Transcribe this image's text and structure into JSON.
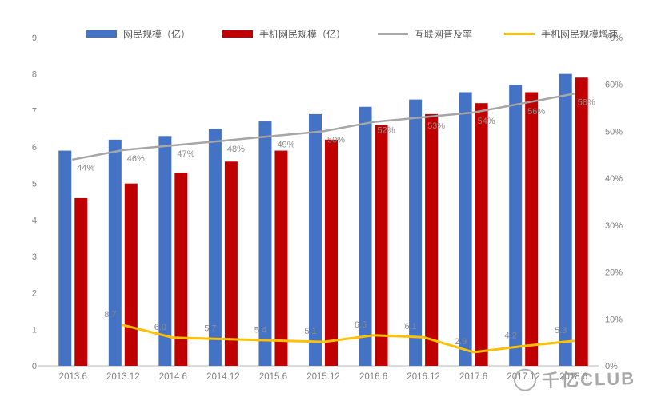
{
  "watermark": {
    "text": "千亿CLUB",
    "icon": "scribble-circle-icon"
  },
  "colors": {
    "netizen_bar": "#4472C4",
    "mobile_bar": "#C00000",
    "penetration_line": "#A6A6A6",
    "growth_line": "#FFC000",
    "axis_text": "#7f7f7f",
    "label_text": "#8c8c8c",
    "baseline": "#d0d0d0",
    "legend_text": "#595959"
  },
  "chart_data": {
    "type": "bar",
    "subtype": "combo-bar-line",
    "title": "",
    "xlabel": "",
    "ylabel": "",
    "grid": false,
    "legend_position": "top",
    "categories": [
      "2013.6",
      "2013.12",
      "2014.6",
      "2014.12",
      "2015.6",
      "2015.12",
      "2016.6",
      "2016.12",
      "2017.6",
      "2017.12",
      "2018.6"
    ],
    "left_axis": {
      "min": 0,
      "max": 9,
      "ticks": [
        "0",
        "1",
        "2",
        "3",
        "4",
        "5",
        "6",
        "7",
        "8",
        "9"
      ]
    },
    "right_axis": {
      "min": 0,
      "max": 70,
      "ticks": [
        "0%",
        "10%",
        "20%",
        "30%",
        "40%",
        "50%",
        "60%",
        "70%"
      ]
    },
    "series": [
      {
        "name": "网民规模（亿）",
        "kind": "bar",
        "axis": "left",
        "color": "#4472C4",
        "values": [
          5.9,
          6.2,
          6.3,
          6.5,
          6.7,
          6.9,
          7.1,
          7.3,
          7.5,
          7.7,
          8.0
        ]
      },
      {
        "name": "手机网民规模（亿）",
        "kind": "bar",
        "axis": "left",
        "color": "#C00000",
        "values": [
          4.6,
          5.0,
          5.3,
          5.6,
          5.9,
          6.2,
          6.6,
          6.9,
          7.2,
          7.5,
          7.9
        ]
      },
      {
        "name": "互联网普及率",
        "kind": "line",
        "axis": "right",
        "color": "#A6A6A6",
        "values": [
          44,
          46,
          47,
          48,
          49,
          50,
          52,
          53,
          54,
          56,
          58
        ],
        "labels": [
          "44%",
          "46%",
          "47%",
          "48%",
          "49%",
          "50%",
          "52%",
          "53%",
          "54%",
          "56%",
          "58%"
        ]
      },
      {
        "name": "手机网民规模增速",
        "kind": "line",
        "axis": "right",
        "color": "#FFC000",
        "values": [
          null,
          8.7,
          6.0,
          5.7,
          5.4,
          5.1,
          6.5,
          6.1,
          2.9,
          4.2,
          5.3
        ],
        "labels": [
          null,
          "8.7",
          "6.0",
          "5.7",
          "5.4",
          "5.1",
          "6.5",
          "6.1",
          "2.9",
          "4.2",
          "5.3"
        ]
      }
    ]
  }
}
